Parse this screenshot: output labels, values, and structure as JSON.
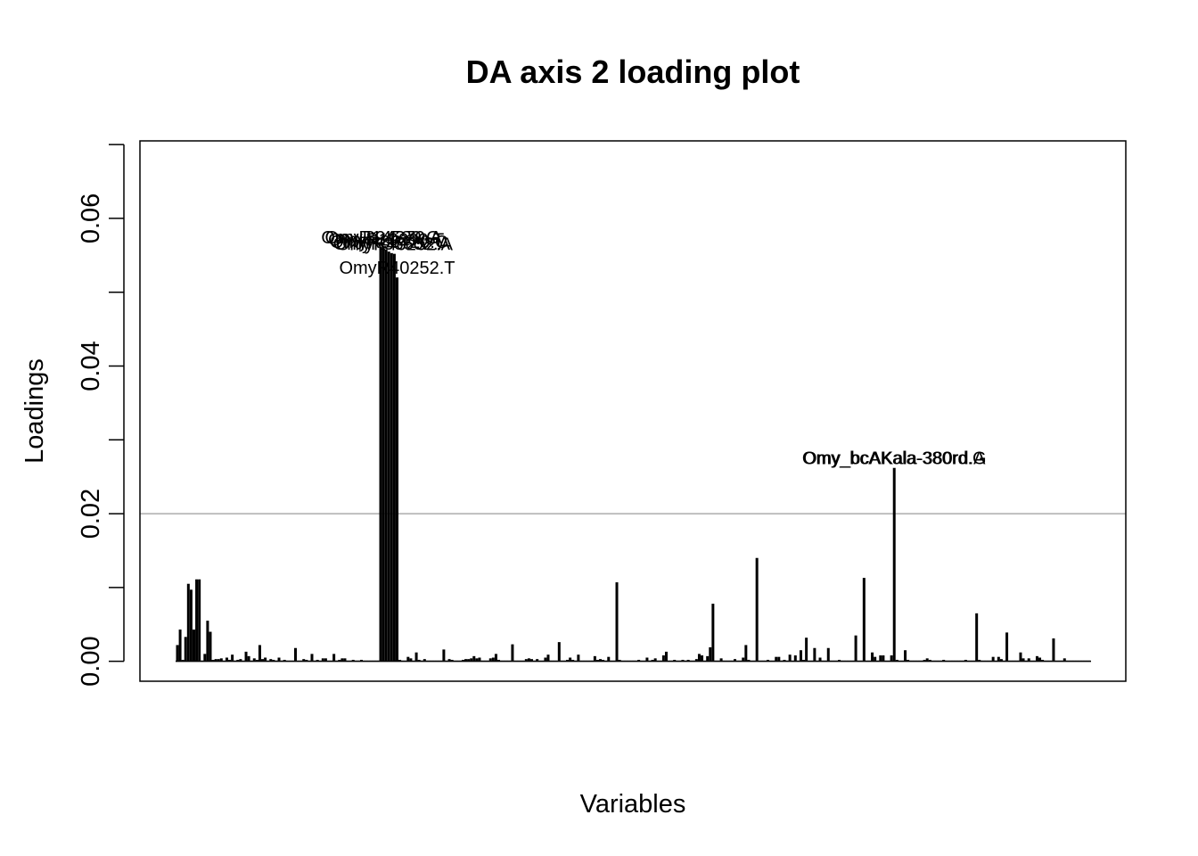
{
  "chart_data": {
    "type": "bar",
    "title": "DA axis 2 loading plot",
    "xlabel": "Variables",
    "ylabel": "Loadings",
    "ylim": [
      -0.0027,
      0.0705
    ],
    "yticks": [
      "0.00",
      "0.02",
      "0.04",
      "0.06"
    ],
    "ytick_values": [
      0,
      0.01,
      0.02,
      0.03,
      0.04,
      0.05,
      0.06,
      0.07
    ],
    "threshold": 0.02,
    "threshold_color": "#bebebe",
    "bar_color": "#000000",
    "grid": false,
    "legend": "none",
    "n_variables": 333,
    "values": [
      0.0022,
      0.0043,
      0.0002,
      0.0033,
      0.0105,
      0.0097,
      0.0043,
      0.0111,
      0.0111,
      0.0001,
      0.001,
      0.0055,
      0.004,
      0.0002,
      0.0003,
      0.0003,
      0.0004,
      0.0001,
      0.0005,
      0.0002,
      0.0009,
      0.0001,
      0.0002,
      0.0003,
      0.0001,
      0.0013,
      0.0007,
      0.0001,
      0.0004,
      0.0002,
      0.0022,
      0.0003,
      0.0005,
      0.0001,
      0.0003,
      0.0002,
      0.0001,
      0.0005,
      0.0001,
      0.0002,
      0.0001,
      0.0001,
      0.0001,
      0.0018,
      0.0001,
      0.0001,
      0.0003,
      0.0002,
      0.0001,
      0.001,
      0.0001,
      0.0002,
      0.0001,
      0.0004,
      0.0004,
      0.0001,
      0.0001,
      0.001,
      0.0001,
      0.0002,
      0.0004,
      0.0004,
      0.0001,
      0.0001,
      0.0002,
      0.0001,
      0.0001,
      0.0002,
      0.0001,
      0.0001,
      0.0001,
      0.0001,
      0.0001,
      0.0001,
      0.0561,
      0.0561,
      0.0558,
      0.0555,
      0.0553,
      0.0552,
      0.052,
      0.0002,
      0.0001,
      0.0001,
      0.0006,
      0.0004,
      0.0001,
      0.0012,
      0.0002,
      0.0001,
      0.0003,
      0.0001,
      0.0001,
      0.0001,
      0.0001,
      0.0001,
      0.0001,
      0.0016,
      0.0001,
      0.0003,
      0.0002,
      0.0001,
      0.0001,
      0.0001,
      0.0002,
      0.0003,
      0.0003,
      0.0004,
      0.0007,
      0.0004,
      0.0005,
      0.0001,
      0.0001,
      0.0001,
      0.0004,
      0.0005,
      0.001,
      0.0002,
      0.0001,
      0.0001,
      0.0001,
      0.0001,
      0.0023,
      0.0001,
      0.0001,
      0.0001,
      0.0001,
      0.0003,
      0.0004,
      0.0003,
      0.0001,
      0.0003,
      0.0001,
      0.0001,
      0.0005,
      0.0009,
      0.0001,
      0.0001,
      0.0001,
      0.0026,
      0.0001,
      0.0001,
      0.0002,
      0.0005,
      0.0002,
      0.0001,
      0.0009,
      0.0001,
      0.0001,
      0.0001,
      0.0001,
      0.0001,
      0.0007,
      0.0002,
      0.0003,
      0.0002,
      0.0001,
      0.0006,
      0.0001,
      0.0001,
      0.0107,
      0.0002,
      0.0001,
      0.0001,
      0.0001,
      0.0001,
      0.0001,
      0.0001,
      0.0002,
      0.0001,
      0.0001,
      0.0005,
      0.0001,
      0.0002,
      0.0004,
      0.0001,
      0.0001,
      0.0008,
      0.0013,
      0.0001,
      0.0001,
      0.0002,
      0.0001,
      0.0001,
      0.0002,
      0.0001,
      0.0002,
      0.0001,
      0.0001,
      0.0003,
      0.001,
      0.0008,
      0.0001,
      0.0007,
      0.0019,
      0.0078,
      0.0001,
      0.0001,
      0.0004,
      0.0001,
      0.0001,
      0.0001,
      0.0001,
      0.0003,
      0.0001,
      0.0001,
      0.0005,
      0.0022,
      0.0002,
      0.0001,
      0.0001,
      0.014,
      0.0001,
      0.0001,
      0.0001,
      0.0002,
      0.0001,
      0.0001,
      0.0006,
      0.0006,
      0.0001,
      0.0002,
      0.0001,
      0.0009,
      0.0001,
      0.0008,
      0.0001,
      0.0015,
      0.0002,
      0.0032,
      0.0001,
      0.0001,
      0.0018,
      0.0001,
      0.0005,
      0.0001,
      0.0001,
      0.0018,
      0.0001,
      0.0001,
      0.0001,
      0.0002,
      0.0001,
      0.0001,
      0.0001,
      0.0001,
      0.0001,
      0.0035,
      0.0001,
      0.0001,
      0.0113,
      0.0001,
      0.0001,
      0.0012,
      0.0006,
      0.0001,
      0.0008,
      0.0008,
      0.0001,
      0.0001,
      0.0008,
      0.0262,
      0.0002,
      0.0001,
      0.0001,
      0.0015,
      0.0002,
      0.0001,
      0.0001,
      0.0001,
      0.0001,
      0.0001,
      0.0002,
      0.0004,
      0.0002,
      0.0001,
      0.0001,
      0.0001,
      0.0001,
      0.0002,
      0.0001,
      0.0001,
      0.0001,
      0.0001,
      0.0001,
      0.0001,
      0.0001,
      0.0002,
      0.0001,
      0.0001,
      0.0001,
      0.0065,
      0.0002,
      0.0001,
      0.0001,
      0.0001,
      0.0001,
      0.0006,
      0.0001,
      0.0006,
      0.0003,
      0.0001,
      0.0039,
      0.0001,
      0.0001,
      0.0001,
      0.0001,
      0.0012,
      0.0004,
      0.0001,
      0.0004,
      0.0001,
      0.0001,
      0.0007,
      0.0005,
      0.0002,
      0.0001,
      0.0001,
      0.0001,
      0.0031,
      0.0001,
      0.0001,
      0.0001,
      0.0004,
      0.0001,
      0.0001,
      0.0001,
      0.0001,
      0.0001,
      0.0001,
      0.0001,
      0.0001,
      0.0001
    ],
    "annotations": [
      {
        "text": "OmyR14589.G",
        "index": 74,
        "value": 0.0561
      },
      {
        "text": "OmyR24370.A",
        "index": 75,
        "value": 0.0561
      },
      {
        "text": "OmyR19290.T",
        "index": 76,
        "value": 0.0558
      },
      {
        "text": "OmyR30420.C",
        "index": 77,
        "value": 0.0555
      },
      {
        "text": "OmyR36502.A",
        "index": 78,
        "value": 0.0553
      },
      {
        "text": "OmyR40252.A",
        "index": 79,
        "value": 0.0552
      },
      {
        "text": "OmyR40252.T",
        "index": 80,
        "value": 0.052
      },
      {
        "text": "Omy_bcAKala-380rd.A",
        "index": 261,
        "value": 0.0262
      },
      {
        "text": "Omy_bcAKala-380rd.G",
        "index": 261,
        "value": 0.0262
      }
    ]
  }
}
